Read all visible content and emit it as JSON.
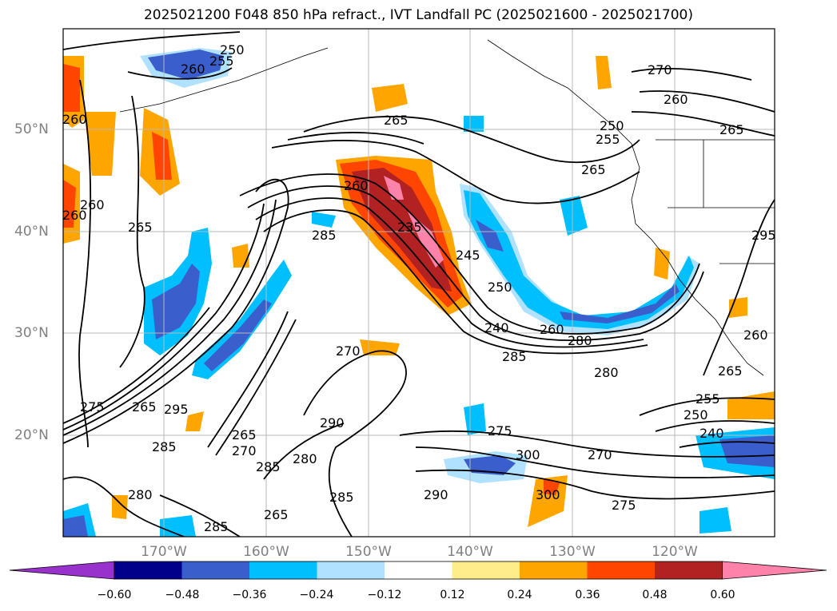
{
  "title": "2025021200 F048 850 hPa refract., IVT Landfall PC (2025021600 - 2025021700)",
  "map": {
    "lat_labels": [
      "50°N",
      "40°N",
      "30°N",
      "20°N"
    ],
    "lon_labels": [
      "170°W",
      "160°W",
      "150°W",
      "140°W",
      "130°W",
      "120°W"
    ],
    "contour_labels": [
      "250",
      "255",
      "260",
      "270",
      "265",
      "260",
      "260",
      "265",
      "255",
      "265",
      "250",
      "260",
      "285",
      "265",
      "260",
      "235",
      "245",
      "250",
      "240",
      "260",
      "285",
      "280",
      "270",
      "280",
      "260",
      "265",
      "255",
      "250",
      "240",
      "275",
      "265",
      "295",
      "285",
      "265",
      "290",
      "280",
      "285",
      "270",
      "275",
      "285",
      "280",
      "265",
      "285",
      "290",
      "300",
      "300",
      "270",
      "275",
      "295",
      "260"
    ]
  },
  "colorbar": {
    "ticks": [
      "−0.60",
      "−0.48",
      "−0.36",
      "−0.24",
      "−0.12",
      "0.12",
      "0.24",
      "0.36",
      "0.48",
      "0.60"
    ],
    "colors": [
      "#9932cc",
      "#00008b",
      "#3a5fcd",
      "#00bfff",
      "#b0e2ff",
      "#ffffff",
      "#ffec8b",
      "#ffa500",
      "#ff4500",
      "#b22222",
      "#ff82ab"
    ]
  }
}
